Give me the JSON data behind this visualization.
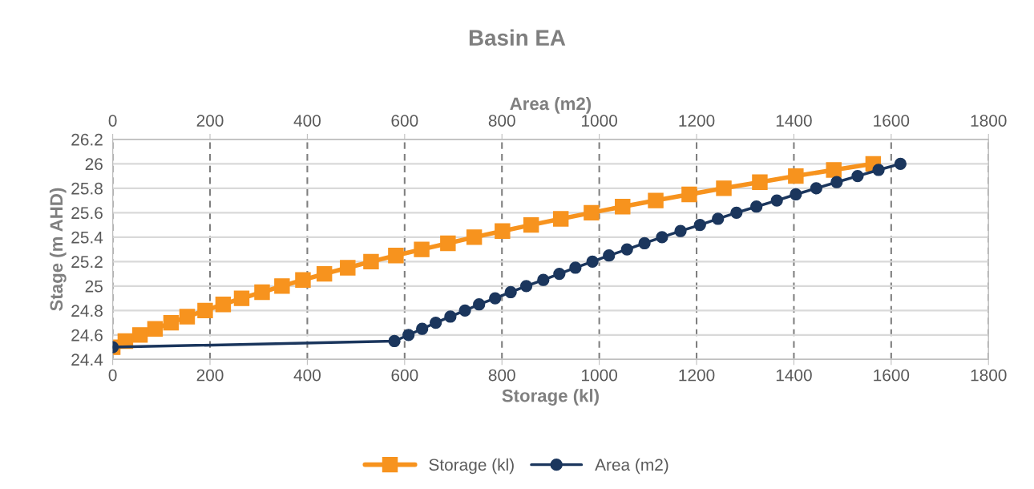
{
  "chart_data": {
    "type": "line",
    "title": "Basin EA",
    "xlabel": "Storage (kl)",
    "x2label": "Area (m2)",
    "ylabel": "Stage (m AHD)",
    "xlim": [
      0,
      1800
    ],
    "xticks": [
      0,
      200,
      400,
      600,
      800,
      1000,
      1200,
      1400,
      1600,
      1800
    ],
    "x2lim": [
      0,
      1800
    ],
    "x2ticks": [
      0,
      200,
      400,
      600,
      800,
      1000,
      1200,
      1400,
      1600,
      1800
    ],
    "ylim": [
      24.4,
      26.2
    ],
    "yticks": [
      24.4,
      24.6,
      24.8,
      25,
      25.2,
      25.4,
      25.6,
      25.8,
      26,
      26.2
    ],
    "grid": true,
    "legend": "bottom",
    "series": [
      {
        "name": "Storage (kl)",
        "color": "#f7931e",
        "marker": "square",
        "x": [
          0,
          26,
          56,
          87,
          120,
          153,
          190,
          227,
          265,
          307,
          348,
          391,
          435,
          483,
          531,
          582,
          635,
          689,
          743,
          801,
          860,
          921,
          984,
          1048,
          1116,
          1185,
          1256,
          1330,
          1404,
          1482,
          1563
        ],
        "values": [
          24.5,
          24.55,
          24.6,
          24.65,
          24.7,
          24.75,
          24.8,
          24.85,
          24.9,
          24.95,
          25,
          25.05,
          25.1,
          25.15,
          25.2,
          25.25,
          25.3,
          25.35,
          25.4,
          25.45,
          25.5,
          25.55,
          25.6,
          25.65,
          25.7,
          25.75,
          25.8,
          25.85,
          25.9,
          25.95,
          26
        ]
      },
      {
        "name": "Area (m2)",
        "color": "#1b365d",
        "marker": "circle",
        "axis": "x2",
        "x": [
          0,
          579,
          608,
          636,
          664,
          694,
          724,
          753,
          786,
          818,
          850,
          885,
          918,
          951,
          986,
          1020,
          1057,
          1093,
          1129,
          1167,
          1207,
          1244,
          1282,
          1323,
          1365,
          1404,
          1446,
          1488,
          1531,
          1574,
          1619
        ],
        "values": [
          24.5,
          24.55,
          24.6,
          24.65,
          24.7,
          24.75,
          24.8,
          24.85,
          24.9,
          24.95,
          25,
          25.05,
          25.1,
          25.15,
          25.2,
          25.25,
          25.3,
          25.35,
          25.4,
          25.45,
          25.5,
          25.55,
          25.6,
          25.65,
          25.7,
          25.75,
          25.8,
          25.85,
          25.9,
          25.95,
          26
        ]
      }
    ]
  }
}
